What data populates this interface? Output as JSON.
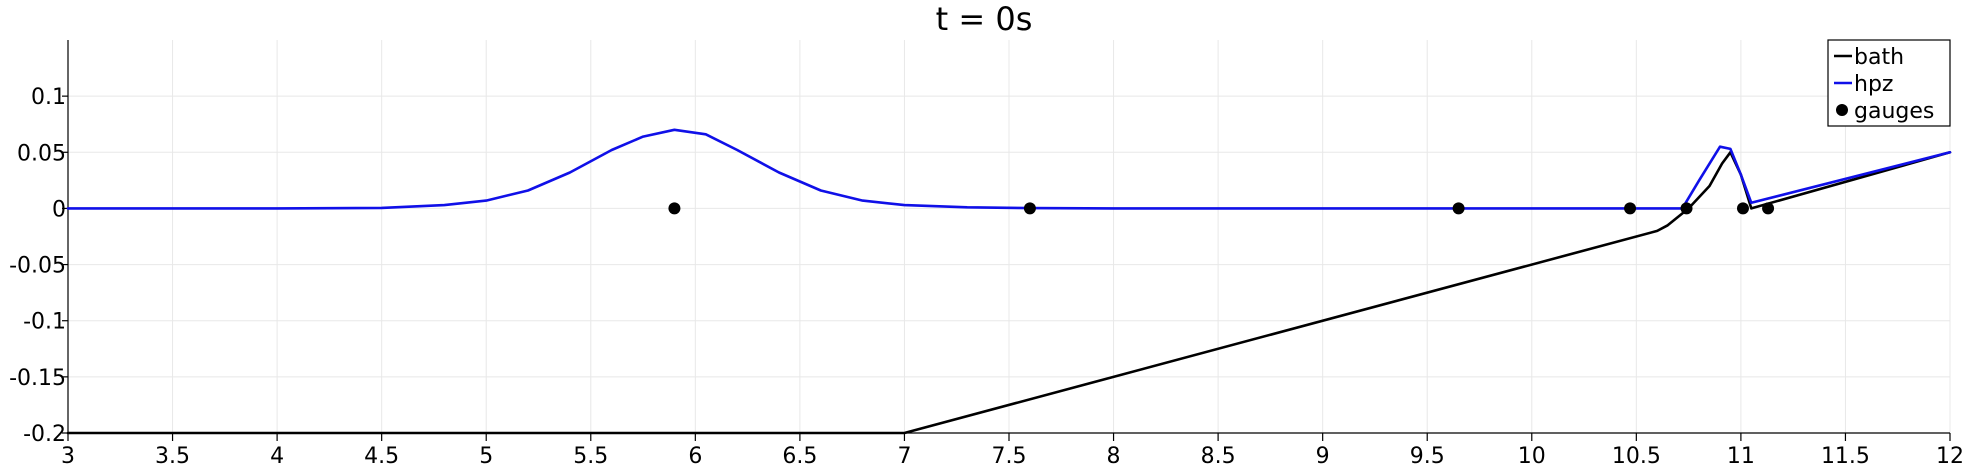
{
  "chart_data": {
    "type": "line",
    "title": "t = 0s",
    "xlim": [
      3,
      12
    ],
    "ylim": [
      -0.2,
      0.15
    ],
    "x_ticks": [
      "3",
      "3.5",
      "4",
      "4.5",
      "5",
      "5.5",
      "6",
      "6.5",
      "7",
      "7.5",
      "8",
      "8.5",
      "9",
      "9.5",
      "10",
      "10.5",
      "11",
      "11.5",
      "12"
    ],
    "x_tick_values": [
      3,
      3.5,
      4,
      4.5,
      5,
      5.5,
      6,
      6.5,
      7,
      7.5,
      8,
      8.5,
      9,
      9.5,
      10,
      10.5,
      11,
      11.5,
      12
    ],
    "y_ticks": [
      "-0.2",
      "-0.15",
      "-0.1",
      "-0.05",
      "0",
      "0.05",
      "0.1"
    ],
    "y_tick_values": [
      -0.2,
      -0.15,
      -0.1,
      -0.05,
      0,
      0.05,
      0.1
    ],
    "grid": true,
    "legend_position": "top-right",
    "series": [
      {
        "name": "bath",
        "kind": "line",
        "color": "#000000",
        "x": [
          3,
          7.0,
          10.6,
          10.65,
          10.75,
          10.85,
          10.91,
          10.95,
          11.0,
          11.05,
          12
        ],
        "y": [
          -0.2,
          -0.2,
          -0.02,
          -0.015,
          0.0,
          0.02,
          0.04,
          0.05,
          0.03,
          0.0,
          0.05
        ]
      },
      {
        "name": "hpz",
        "kind": "line",
        "color": "#1010e8",
        "x": [
          3,
          4.0,
          4.5,
          4.8,
          5.0,
          5.2,
          5.4,
          5.6,
          5.75,
          5.9,
          6.05,
          6.2,
          6.4,
          6.6,
          6.8,
          7.0,
          7.3,
          7.6,
          8.0,
          9.0,
          10.0,
          10.5,
          10.72,
          10.8,
          10.9,
          10.95,
          11.0,
          11.05,
          12
        ],
        "y": [
          0,
          0,
          0.0005,
          0.003,
          0.007,
          0.016,
          0.032,
          0.052,
          0.064,
          0.07,
          0.066,
          0.052,
          0.032,
          0.016,
          0.007,
          0.003,
          0.001,
          0.0003,
          0,
          0,
          0,
          0,
          0,
          0.025,
          0.055,
          0.053,
          0.03,
          0.005,
          0.05
        ]
      },
      {
        "name": "gauges",
        "kind": "scatter",
        "color": "#000000",
        "x": [
          5.9,
          7.6,
          9.65,
          10.47,
          10.74,
          11.01,
          11.13
        ],
        "y": [
          0,
          0,
          0,
          0,
          0,
          0,
          0
        ]
      }
    ]
  }
}
